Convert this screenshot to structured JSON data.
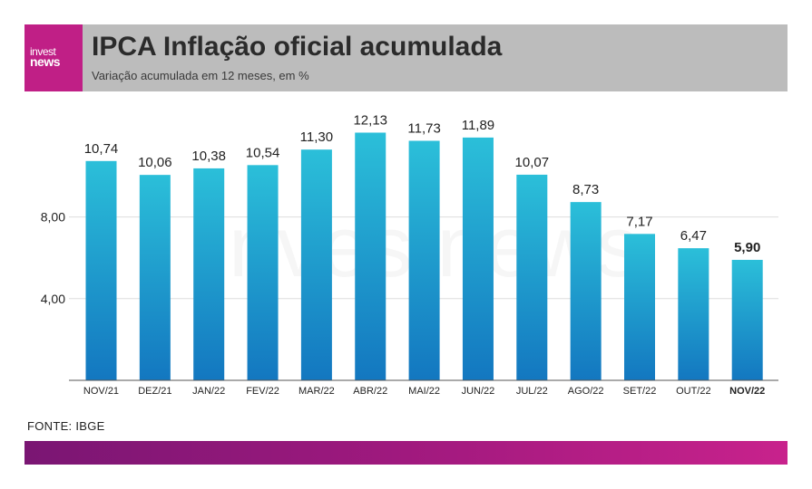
{
  "brand": {
    "logo_line1": "invest",
    "logo_line2": "news",
    "watermark": "investnews",
    "accent": "#c01f86"
  },
  "header": {
    "title": "IPCA Inflação oficial acumulada",
    "subtitle": "Variação acumulada em 12 meses, em %"
  },
  "footer": {
    "source": "FONTE: IBGE"
  },
  "chart_data": {
    "type": "bar",
    "categories": [
      "NOV/21",
      "DEZ/21",
      "JAN/22",
      "FEV/22",
      "MAR/22",
      "ABR/22",
      "MAI/22",
      "JUN/22",
      "JUL/22",
      "AGO/22",
      "SET/22",
      "OUT/22",
      "NOV/22"
    ],
    "values": [
      10.74,
      10.06,
      10.38,
      10.54,
      11.3,
      12.13,
      11.73,
      11.89,
      10.07,
      8.73,
      7.17,
      6.47,
      5.9
    ],
    "value_labels": [
      "10,74",
      "10,06",
      "10,38",
      "10,54",
      "11,30",
      "12,13",
      "11,73",
      "11,89",
      "10,07",
      "8,73",
      "7,17",
      "6,47",
      "5,90"
    ],
    "highlight_index": 12,
    "yticks": [
      4,
      8
    ],
    "ytick_labels": [
      "4,00",
      "8,00"
    ],
    "ylim": [
      0,
      12.5
    ],
    "grid": true,
    "bar_color_top": "#2bbfd9",
    "bar_color_bottom": "#1377c0"
  }
}
